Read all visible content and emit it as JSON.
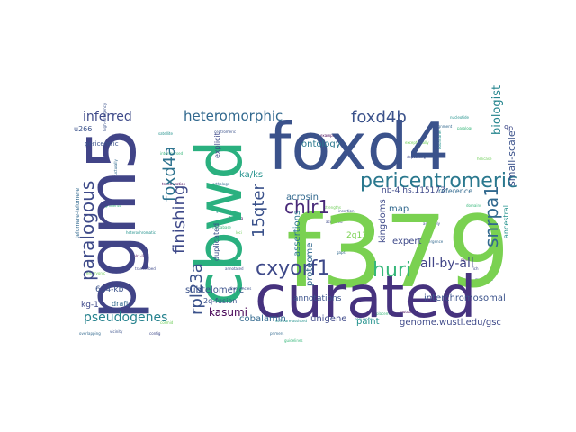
{
  "words": [
    {
      "text": "f379",
      "color": "#7ad151",
      "weight": 1.0
    },
    {
      "text": "curated",
      "color": "#46327e",
      "weight": 0.92
    },
    {
      "text": "foxd4",
      "color": "#3b528b",
      "weight": 0.9
    },
    {
      "text": "cbwd",
      "color": "#2ab07f",
      "weight": 0.88
    },
    {
      "text": "pgm5",
      "color": "#414487",
      "weight": 0.86
    },
    {
      "text": "pericentromeric",
      "color": "#2a788e",
      "weight": 0.45
    },
    {
      "text": "cxyorf1",
      "color": "#3e4989",
      "weight": 0.42
    },
    {
      "text": "foxd4b",
      "color": "#3b528b",
      "weight": 0.38
    },
    {
      "text": "chlr1",
      "color": "#482878",
      "weight": 0.36
    },
    {
      "text": "paralogous",
      "color": "#3e4a89",
      "weight": 0.36
    },
    {
      "text": "huri",
      "color": "#35b779",
      "weight": 0.36
    },
    {
      "text": "snrpa1",
      "color": "#31688e",
      "weight": 0.34
    },
    {
      "text": "rpl23a",
      "color": "#3b528b",
      "weight": 0.32
    },
    {
      "text": "foxd4a",
      "color": "#2c728e",
      "weight": 0.3
    },
    {
      "text": "finishing",
      "color": "#3e4989",
      "weight": 0.3
    },
    {
      "text": "15qter",
      "color": "#3b528b",
      "weight": 0.28
    },
    {
      "text": "heteromorphic",
      "color": "#31688e",
      "weight": 0.26
    },
    {
      "text": "inferred",
      "color": "#3e4a89",
      "weight": 0.24
    },
    {
      "text": "pseudogenes",
      "color": "#26828e",
      "weight": 0.24
    },
    {
      "text": "all-by-all",
      "color": "#414487",
      "weight": 0.22
    },
    {
      "text": "biologist",
      "color": "#25858e",
      "weight": 0.2
    },
    {
      "text": "kasumi",
      "color": "#440154",
      "weight": 0.2
    },
    {
      "text": "small-scale",
      "color": "#3b528b",
      "weight": 0.18
    },
    {
      "text": "genome.wustl.edu/gsc",
      "color": "#3e4989",
      "weight": 0.14
    },
    {
      "text": "ontology",
      "color": "#2a788e",
      "weight": 0.14
    },
    {
      "text": "acrosin",
      "color": "#31688e",
      "weight": 0.14
    },
    {
      "text": "subtelomeric",
      "color": "#3b528b",
      "weight": 0.14
    },
    {
      "text": "interchromosomal",
      "color": "#3b528b",
      "weight": 0.12
    },
    {
      "text": "ka/ks",
      "color": "#21918c",
      "weight": 0.12
    },
    {
      "text": "kingdoms",
      "color": "#3e4989",
      "weight": 0.14
    },
    {
      "text": "assertions",
      "color": "#2a788e",
      "weight": 0.12
    },
    {
      "text": "proteome",
      "color": "#31688e",
      "weight": 0.12
    },
    {
      "text": "expert",
      "color": "#3e4989",
      "weight": 0.12
    },
    {
      "text": "annotations",
      "color": "#3b528b",
      "weight": 0.1
    },
    {
      "text": "unigene",
      "color": "#3e4989",
      "weight": 0.12
    },
    {
      "text": "cobalamin",
      "color": "#31688e",
      "weight": 0.12
    },
    {
      "text": "paint",
      "color": "#21918c",
      "weight": 0.12
    },
    {
      "text": "map",
      "color": "#31688e",
      "weight": 0.12
    },
    {
      "text": "2q13",
      "color": "#7ad151",
      "weight": 0.1
    },
    {
      "text": "nb-4 hs.115173",
      "color": "#3e4989",
      "weight": 0.1
    },
    {
      "text": "reference",
      "color": "#31688e",
      "weight": 0.1
    },
    {
      "text": "ancestral",
      "color": "#21918c",
      "weight": 0.1
    },
    {
      "text": "duplicated",
      "color": "#3b528b",
      "weight": 0.1
    },
    {
      "text": "explicit",
      "color": "#3e4989",
      "weight": 0.1
    },
    {
      "text": "2q-fusion",
      "color": "#3b528b",
      "weight": 0.1
    },
    {
      "text": "614-kb",
      "color": "#3b528b",
      "weight": 0.1
    },
    {
      "text": "kg-1",
      "color": "#3e4989",
      "weight": 0.1
    },
    {
      "text": "draft",
      "color": "#31688e",
      "weight": 0.08
    },
    {
      "text": "u266",
      "color": "#3b528b",
      "weight": 0.08
    },
    {
      "text": "pericentric",
      "color": "#3b528b",
      "weight": 0.07
    },
    {
      "text": "telomere-telomere",
      "color": "#31688e",
      "weight": 0.07
    },
    {
      "text": "9p",
      "color": "#3e4989",
      "weight": 0.08
    }
  ],
  "filler_words": [
    "high-stringency",
    "structurally",
    "heterochromatic",
    "alignments",
    "chlr1-like",
    "embryonic",
    "transcribed",
    "vicinity",
    "overlapping",
    "satellite",
    "interspersed",
    "translocation",
    "cosmid",
    "contig",
    "centromeric",
    "orthologs",
    "genomic",
    "megabase",
    "flanking",
    "loci",
    "annotated",
    "frequencies",
    "primers",
    "software-assisted",
    "guidelines",
    "examples",
    "strengths",
    "accessed",
    "insertion",
    "gaps",
    "sequences",
    "placement",
    "mutually",
    "exceptionally",
    "depositing",
    "assembly",
    "divergence",
    "nucleotide",
    "paralogs",
    "symbol",
    "helicase",
    "rich",
    "mammals",
    "alignment",
    "boundaries",
    "domains"
  ]
}
